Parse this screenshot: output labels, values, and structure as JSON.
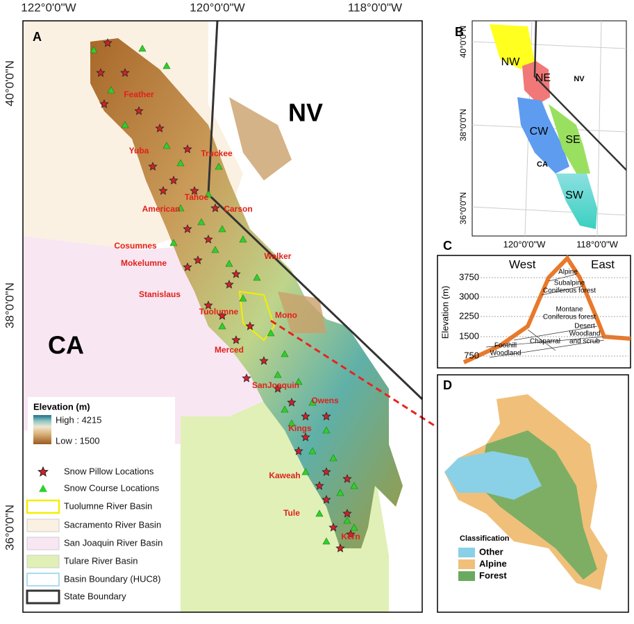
{
  "panel_a": {
    "label": "A",
    "lon_labels": [
      "122°0'0\"W",
      "120°0'0\"W",
      "118°0'0\"W"
    ],
    "lat_labels": [
      "40°0'0\"N",
      "38°0'0\"N",
      "36°0'0\"N"
    ],
    "state_labels": [
      "NV",
      "CA"
    ],
    "basin_labels": [
      "Feather",
      "Yuba",
      "Truckee",
      "Tahoe",
      "American",
      "Carson",
      "Cosumnes",
      "Mokelumne",
      "Walker",
      "Stanislaus",
      "Tuolumne",
      "Mono",
      "Merced",
      "SanJoaquin",
      "Owens",
      "Kings",
      "Kaweah",
      "Tule",
      "Kern"
    ],
    "legend": {
      "elevation_title": "Elevation (m)",
      "high": "High : 4215",
      "low": "Low : 1500",
      "items": [
        "Snow Pillow Locations",
        "Snow Course Locations",
        "Tuolumne River Basin",
        "Sacramento River Basin",
        "San Joaquin River Basin",
        "Tulare River Basin",
        "Basin Boundary (HUC8)",
        "State Boundary"
      ]
    }
  },
  "panel_b": {
    "label": "B",
    "lat_labels": [
      "40°0'0\"N",
      "38°0'0\"N",
      "36°0'0\"N"
    ],
    "lon_labels": [
      "120°0'0\"W",
      "118°0'0\"W"
    ],
    "regions": [
      "NW",
      "NE",
      "CW",
      "SE",
      "SW"
    ],
    "state_labels": [
      "NV",
      "CA"
    ]
  },
  "panel_c": {
    "label": "C",
    "west": "West",
    "east": "East",
    "y_axis_title": "Elevation (m)",
    "y_ticks": [
      "3750",
      "3000",
      "2250",
      "1500",
      "750"
    ],
    "zones": [
      [
        "Alpine"
      ],
      [
        "Subalpine",
        "Coniferous forest"
      ],
      [
        "Montane",
        "Coniferous forest"
      ],
      [
        "Desert",
        "Woodland",
        "and scrub"
      ],
      [
        "Chaparral"
      ],
      [
        "Foothill",
        "Woodland"
      ]
    ]
  },
  "panel_d": {
    "label": "D",
    "legend_title": "Classification",
    "classes": [
      "Other",
      "Alpine",
      "Forest"
    ]
  }
}
